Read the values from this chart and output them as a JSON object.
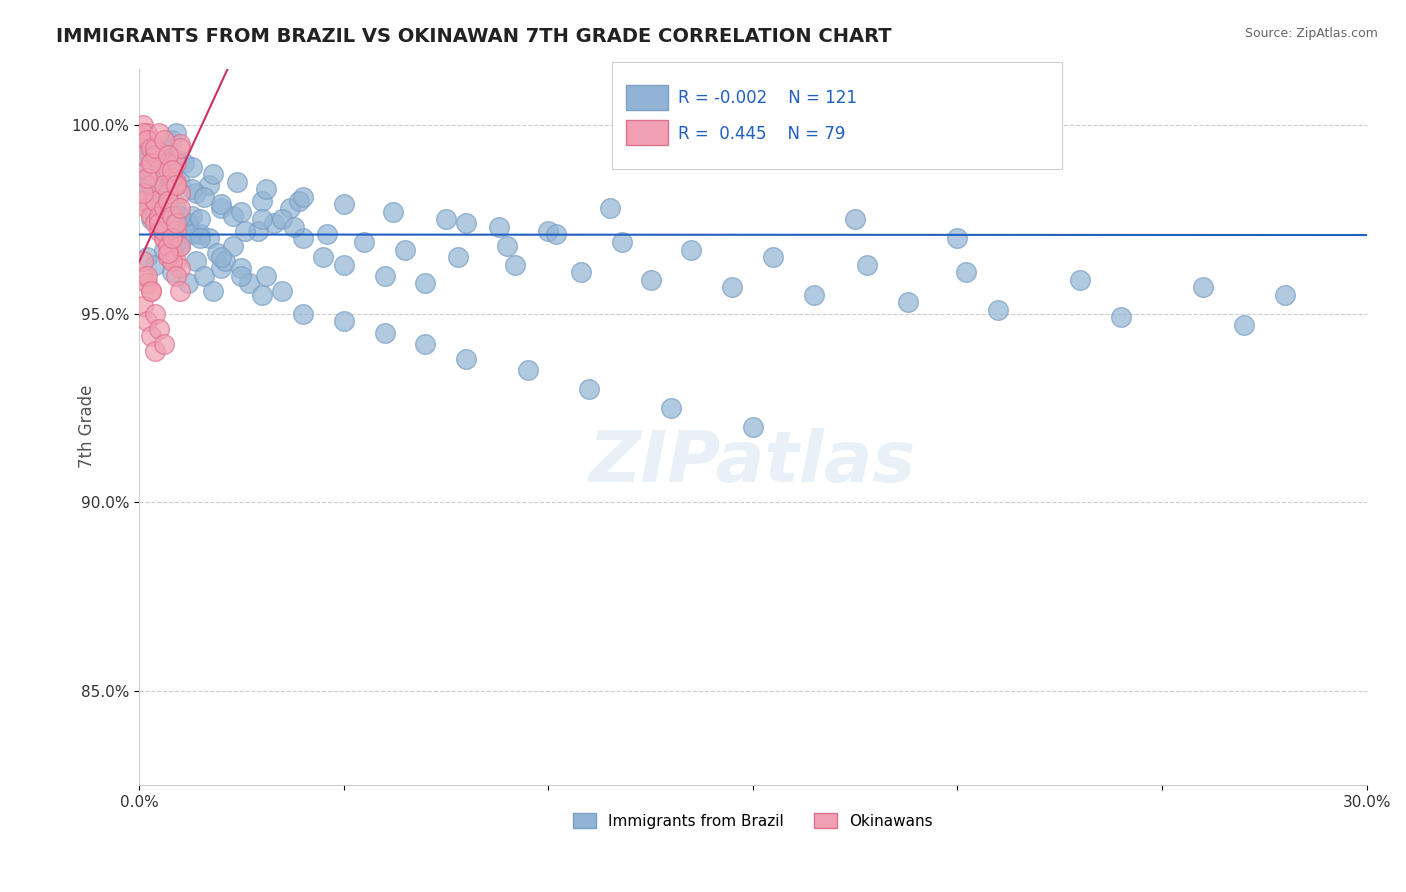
{
  "title": "IMMIGRANTS FROM BRAZIL VS OKINAWAN 7TH GRADE CORRELATION CHART",
  "source_text": "Source: ZipAtlas.com",
  "xlabel": "",
  "ylabel": "7th Grade",
  "xmin": 0.0,
  "xmax": 0.3,
  "ymin": 0.825,
  "ymax": 1.015,
  "yticks": [
    0.85,
    0.9,
    0.95,
    1.0
  ],
  "ytick_labels": [
    "85.0%",
    "90.0%",
    "95.0%",
    "100.0%"
  ],
  "xticks": [
    0.0,
    0.05,
    0.1,
    0.15,
    0.2,
    0.25,
    0.3
  ],
  "xtick_labels": [
    "0.0%",
    "",
    "",
    "",
    "",
    "",
    "30.0%"
  ],
  "legend_brazil": "Immigrants from Brazil",
  "legend_okinawa": "Okinawans",
  "R_brazil": "-0.002",
  "N_brazil": "121",
  "R_okinawa": "0.445",
  "N_okinawa": "79",
  "blue_color": "#92b4d4",
  "blue_edge": "#7a9fc4",
  "pink_color": "#f0a0b0",
  "pink_edge": "#e07090",
  "regression_blue_color": "#2060c0",
  "regression_pink_color": "#d03060",
  "grid_color": "#cccccc",
  "background_color": "#ffffff",
  "brazil_x": [
    0.001,
    0.003,
    0.004,
    0.006,
    0.007,
    0.009,
    0.01,
    0.012,
    0.013,
    0.015,
    0.002,
    0.004,
    0.006,
    0.008,
    0.01,
    0.012,
    0.014,
    0.016,
    0.018,
    0.02,
    0.001,
    0.003,
    0.005,
    0.007,
    0.009,
    0.011,
    0.013,
    0.015,
    0.017,
    0.019,
    0.021,
    0.023,
    0.025,
    0.027,
    0.029,
    0.031,
    0.033,
    0.035,
    0.037,
    0.039,
    0.002,
    0.005,
    0.008,
    0.011,
    0.014,
    0.017,
    0.02,
    0.023,
    0.026,
    0.03,
    0.035,
    0.04,
    0.045,
    0.05,
    0.06,
    0.07,
    0.08,
    0.09,
    0.1,
    0.115,
    0.001,
    0.002,
    0.003,
    0.004,
    0.005,
    0.006,
    0.007,
    0.008,
    0.009,
    0.01,
    0.015,
    0.02,
    0.025,
    0.03,
    0.04,
    0.05,
    0.06,
    0.07,
    0.08,
    0.095,
    0.11,
    0.13,
    0.15,
    0.175,
    0.2,
    0.001,
    0.002,
    0.003,
    0.005,
    0.007,
    0.01,
    0.013,
    0.016,
    0.02,
    0.025,
    0.03,
    0.038,
    0.046,
    0.055,
    0.065,
    0.078,
    0.092,
    0.108,
    0.125,
    0.145,
    0.165,
    0.188,
    0.21,
    0.24,
    0.27,
    0.001,
    0.003,
    0.006,
    0.009,
    0.013,
    0.018,
    0.024,
    0.031,
    0.04,
    0.05,
    0.062,
    0.075,
    0.088,
    0.102,
    0.118,
    0.135,
    0.155,
    0.178,
    0.202,
    0.23,
    0.26,
    0.28
  ],
  "brazil_y": [
    0.98,
    0.975,
    0.978,
    0.972,
    0.982,
    0.97,
    0.968,
    0.974,
    0.976,
    0.971,
    0.965,
    0.963,
    0.967,
    0.961,
    0.969,
    0.958,
    0.964,
    0.96,
    0.956,
    0.962,
    0.985,
    0.983,
    0.981,
    0.977,
    0.979,
    0.973,
    0.971,
    0.975,
    0.97,
    0.966,
    0.964,
    0.968,
    0.962,
    0.958,
    0.972,
    0.96,
    0.974,
    0.956,
    0.978,
    0.98,
    0.984,
    0.986,
    0.988,
    0.99,
    0.982,
    0.984,
    0.978,
    0.976,
    0.972,
    0.98,
    0.975,
    0.97,
    0.965,
    0.963,
    0.96,
    0.958,
    0.974,
    0.968,
    0.972,
    0.978,
    0.992,
    0.988,
    0.986,
    0.984,
    0.99,
    0.982,
    0.994,
    0.996,
    0.998,
    0.976,
    0.97,
    0.965,
    0.96,
    0.955,
    0.95,
    0.948,
    0.945,
    0.942,
    0.938,
    0.935,
    0.93,
    0.925,
    0.92,
    0.975,
    0.97,
    0.995,
    0.993,
    0.991,
    0.989,
    0.987,
    0.985,
    0.983,
    0.981,
    0.979,
    0.977,
    0.975,
    0.973,
    0.971,
    0.969,
    0.967,
    0.965,
    0.963,
    0.961,
    0.959,
    0.957,
    0.955,
    0.953,
    0.951,
    0.949,
    0.947,
    0.997,
    0.995,
    0.993,
    0.991,
    0.989,
    0.987,
    0.985,
    0.983,
    0.981,
    0.979,
    0.977,
    0.975,
    0.973,
    0.971,
    0.969,
    0.967,
    0.965,
    0.963,
    0.961,
    0.959,
    0.957,
    0.955
  ],
  "okinawa_x": [
    0.001,
    0.002,
    0.003,
    0.004,
    0.005,
    0.006,
    0.007,
    0.008,
    0.009,
    0.01,
    0.001,
    0.002,
    0.003,
    0.004,
    0.005,
    0.006,
    0.007,
    0.008,
    0.009,
    0.01,
    0.001,
    0.002,
    0.003,
    0.004,
    0.005,
    0.006,
    0.007,
    0.008,
    0.009,
    0.01,
    0.001,
    0.002,
    0.003,
    0.004,
    0.005,
    0.006,
    0.007,
    0.008,
    0.009,
    0.01,
    0.001,
    0.002,
    0.003,
    0.004,
    0.005,
    0.006,
    0.007,
    0.008,
    0.009,
    0.01,
    0.001,
    0.002,
    0.003,
    0.004,
    0.005,
    0.006,
    0.007,
    0.008,
    0.009,
    0.01,
    0.001,
    0.002,
    0.003,
    0.004,
    0.005,
    0.006,
    0.007,
    0.008,
    0.009,
    0.01,
    0.001,
    0.002,
    0.003,
    0.004,
    0.005,
    0.006,
    0.007,
    0.008,
    0.009
  ],
  "okinawa_y": [
    1.0,
    0.998,
    0.996,
    0.994,
    0.992,
    0.99,
    0.988,
    0.986,
    0.984,
    0.982,
    0.98,
    0.978,
    0.976,
    0.974,
    0.972,
    0.97,
    0.968,
    0.966,
    0.964,
    0.962,
    0.96,
    0.958,
    0.956,
    0.98,
    0.975,
    0.97,
    0.965,
    0.99,
    0.985,
    0.995,
    0.992,
    0.988,
    0.984,
    0.98,
    0.976,
    0.972,
    0.968,
    0.964,
    0.96,
    0.956,
    0.952,
    0.948,
    0.944,
    0.94,
    0.974,
    0.978,
    0.982,
    0.986,
    0.99,
    0.994,
    0.998,
    0.996,
    0.994,
    0.992,
    0.988,
    0.984,
    0.98,
    0.976,
    0.972,
    0.968,
    0.964,
    0.96,
    0.956,
    0.95,
    0.946,
    0.942,
    0.966,
    0.97,
    0.974,
    0.978,
    0.982,
    0.986,
    0.99,
    0.994,
    0.998,
    0.996,
    0.992,
    0.988,
    0.984
  ]
}
